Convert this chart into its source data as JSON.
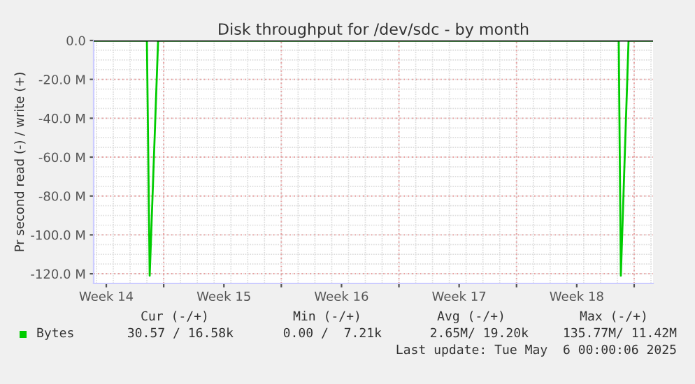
{
  "chart_data": {
    "type": "line",
    "title": "Disk throughput for /dev/sdc - by month",
    "ylabel": "Pr second read (-) / write (+)",
    "x": [
      "2025-04-02T20:00",
      "2025-04-06T00:00",
      "2025-04-06T04:00",
      "2025-04-06T16:00",
      "2025-05-04T02:00",
      "2025-05-04T05:00",
      "2025-05-04T16:00",
      "2025-05-06T03:00"
    ],
    "series": [
      {
        "name": "Bytes",
        "color": "#00cc00",
        "values": [
          0,
          0,
          -121,
          0,
          0,
          -121,
          0,
          0
        ]
      }
    ],
    "xlim": [
      "2025-04-02T20:00",
      "2025-05-06T03:00"
    ],
    "xticks": [
      {
        "value": "2025-04-03T14:00",
        "label": "Week 14"
      },
      {
        "value": "2025-04-10T14:00",
        "label": "Week 15"
      },
      {
        "value": "2025-04-17T14:00",
        "label": "Week 16"
      },
      {
        "value": "2025-04-24T14:00",
        "label": "Week 17"
      },
      {
        "value": "2025-05-01T14:00",
        "label": "Week 18"
      },
      {
        "value": "2025-04-07",
        "label": null
      },
      {
        "value": "2025-04-14",
        "label": null
      },
      {
        "value": "2025-04-21",
        "label": null
      },
      {
        "value": "2025-04-28",
        "label": null
      },
      {
        "value": "2025-05-05",
        "label": null
      }
    ],
    "ylim": [
      -125,
      0
    ],
    "yticks": [
      {
        "value": 0,
        "label": "0.0"
      },
      {
        "value": -20,
        "label": "-20.0 M"
      },
      {
        "value": -40,
        "label": "-40.0 M"
      },
      {
        "value": -60,
        "label": "-60.0 M"
      },
      {
        "value": -80,
        "label": "-80.0 M"
      },
      {
        "value": -100,
        "label": "-100.0 M"
      },
      {
        "value": -120,
        "label": "-120.0 M"
      }
    ],
    "ref_lines": [
      {
        "axis": "y",
        "value": 0,
        "color": "#000000"
      }
    ],
    "grid": true,
    "legend": "bottom",
    "marker": "none",
    "line_style": "solid",
    "annotations": [
      "Cur (-/+)",
      "Min (-/+)",
      "Avg (-/+)",
      "Max (-/+)",
      "30.57 / 16.58k",
      "0.00 /  7.21k",
      "2.65M/ 19.20k",
      "135.77M/ 11.42M",
      "Last update: Tue May  6 00:00:06 2025"
    ]
  }
}
